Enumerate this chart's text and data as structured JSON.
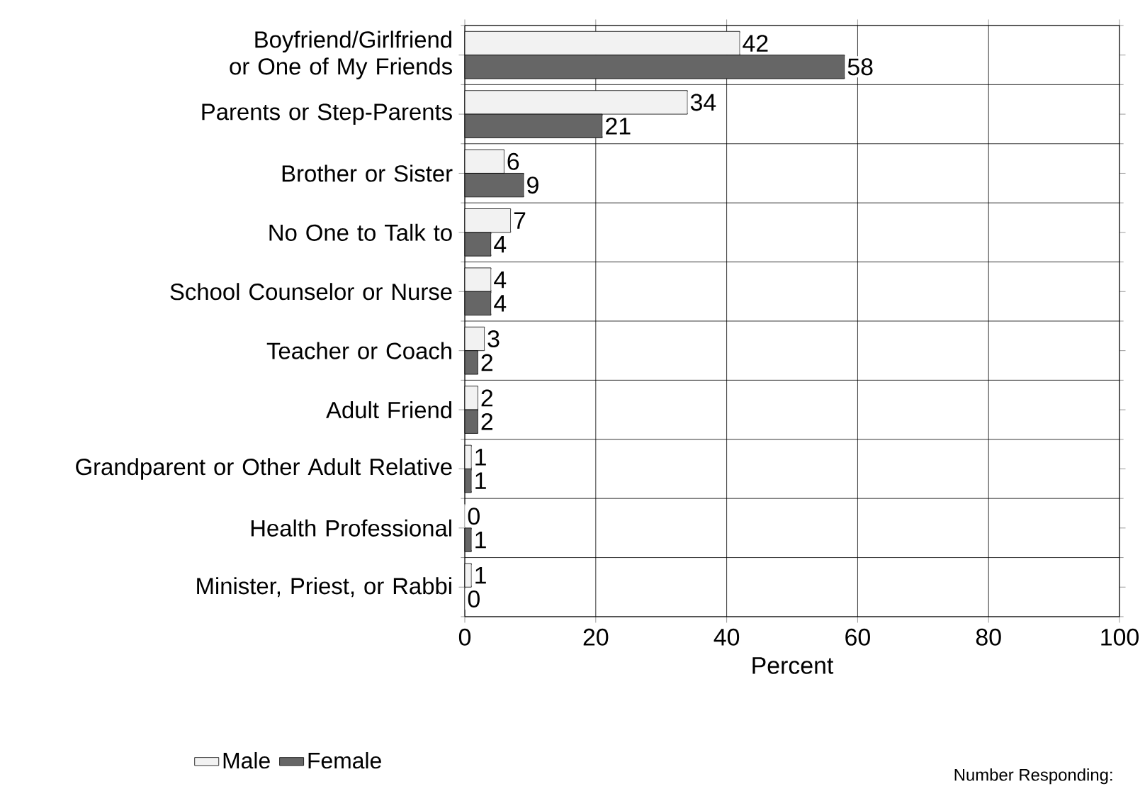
{
  "chart_data": {
    "type": "bar",
    "orientation": "horizontal",
    "xlabel": "Percent",
    "categories": [
      "Boyfriend/Girlfriend or One of My Friends",
      "Parents or Step-Parents",
      "Brother or Sister",
      "No One to Talk to",
      "School Counselor or Nurse",
      "Teacher or Coach",
      "Adult Friend",
      "Grandparent or Other Adult Relative",
      "Health Professional",
      "Minister, Priest, or Rabbi"
    ],
    "series": [
      {
        "name": "Male",
        "color": "#f2f2f2",
        "values": [
          42,
          34,
          6,
          7,
          4,
          3,
          2,
          1,
          0,
          1
        ]
      },
      {
        "name": "Female",
        "color": "#666666",
        "values": [
          58,
          21,
          9,
          4,
          4,
          2,
          2,
          1,
          1,
          0
        ]
      }
    ],
    "xlim": [
      0,
      100
    ],
    "xticks": [
      0,
      20,
      40,
      60,
      80,
      100
    ],
    "grid": true,
    "data_labels": true,
    "legend": "bottom left",
    "annotations": [
      "Number Responding:"
    ]
  }
}
